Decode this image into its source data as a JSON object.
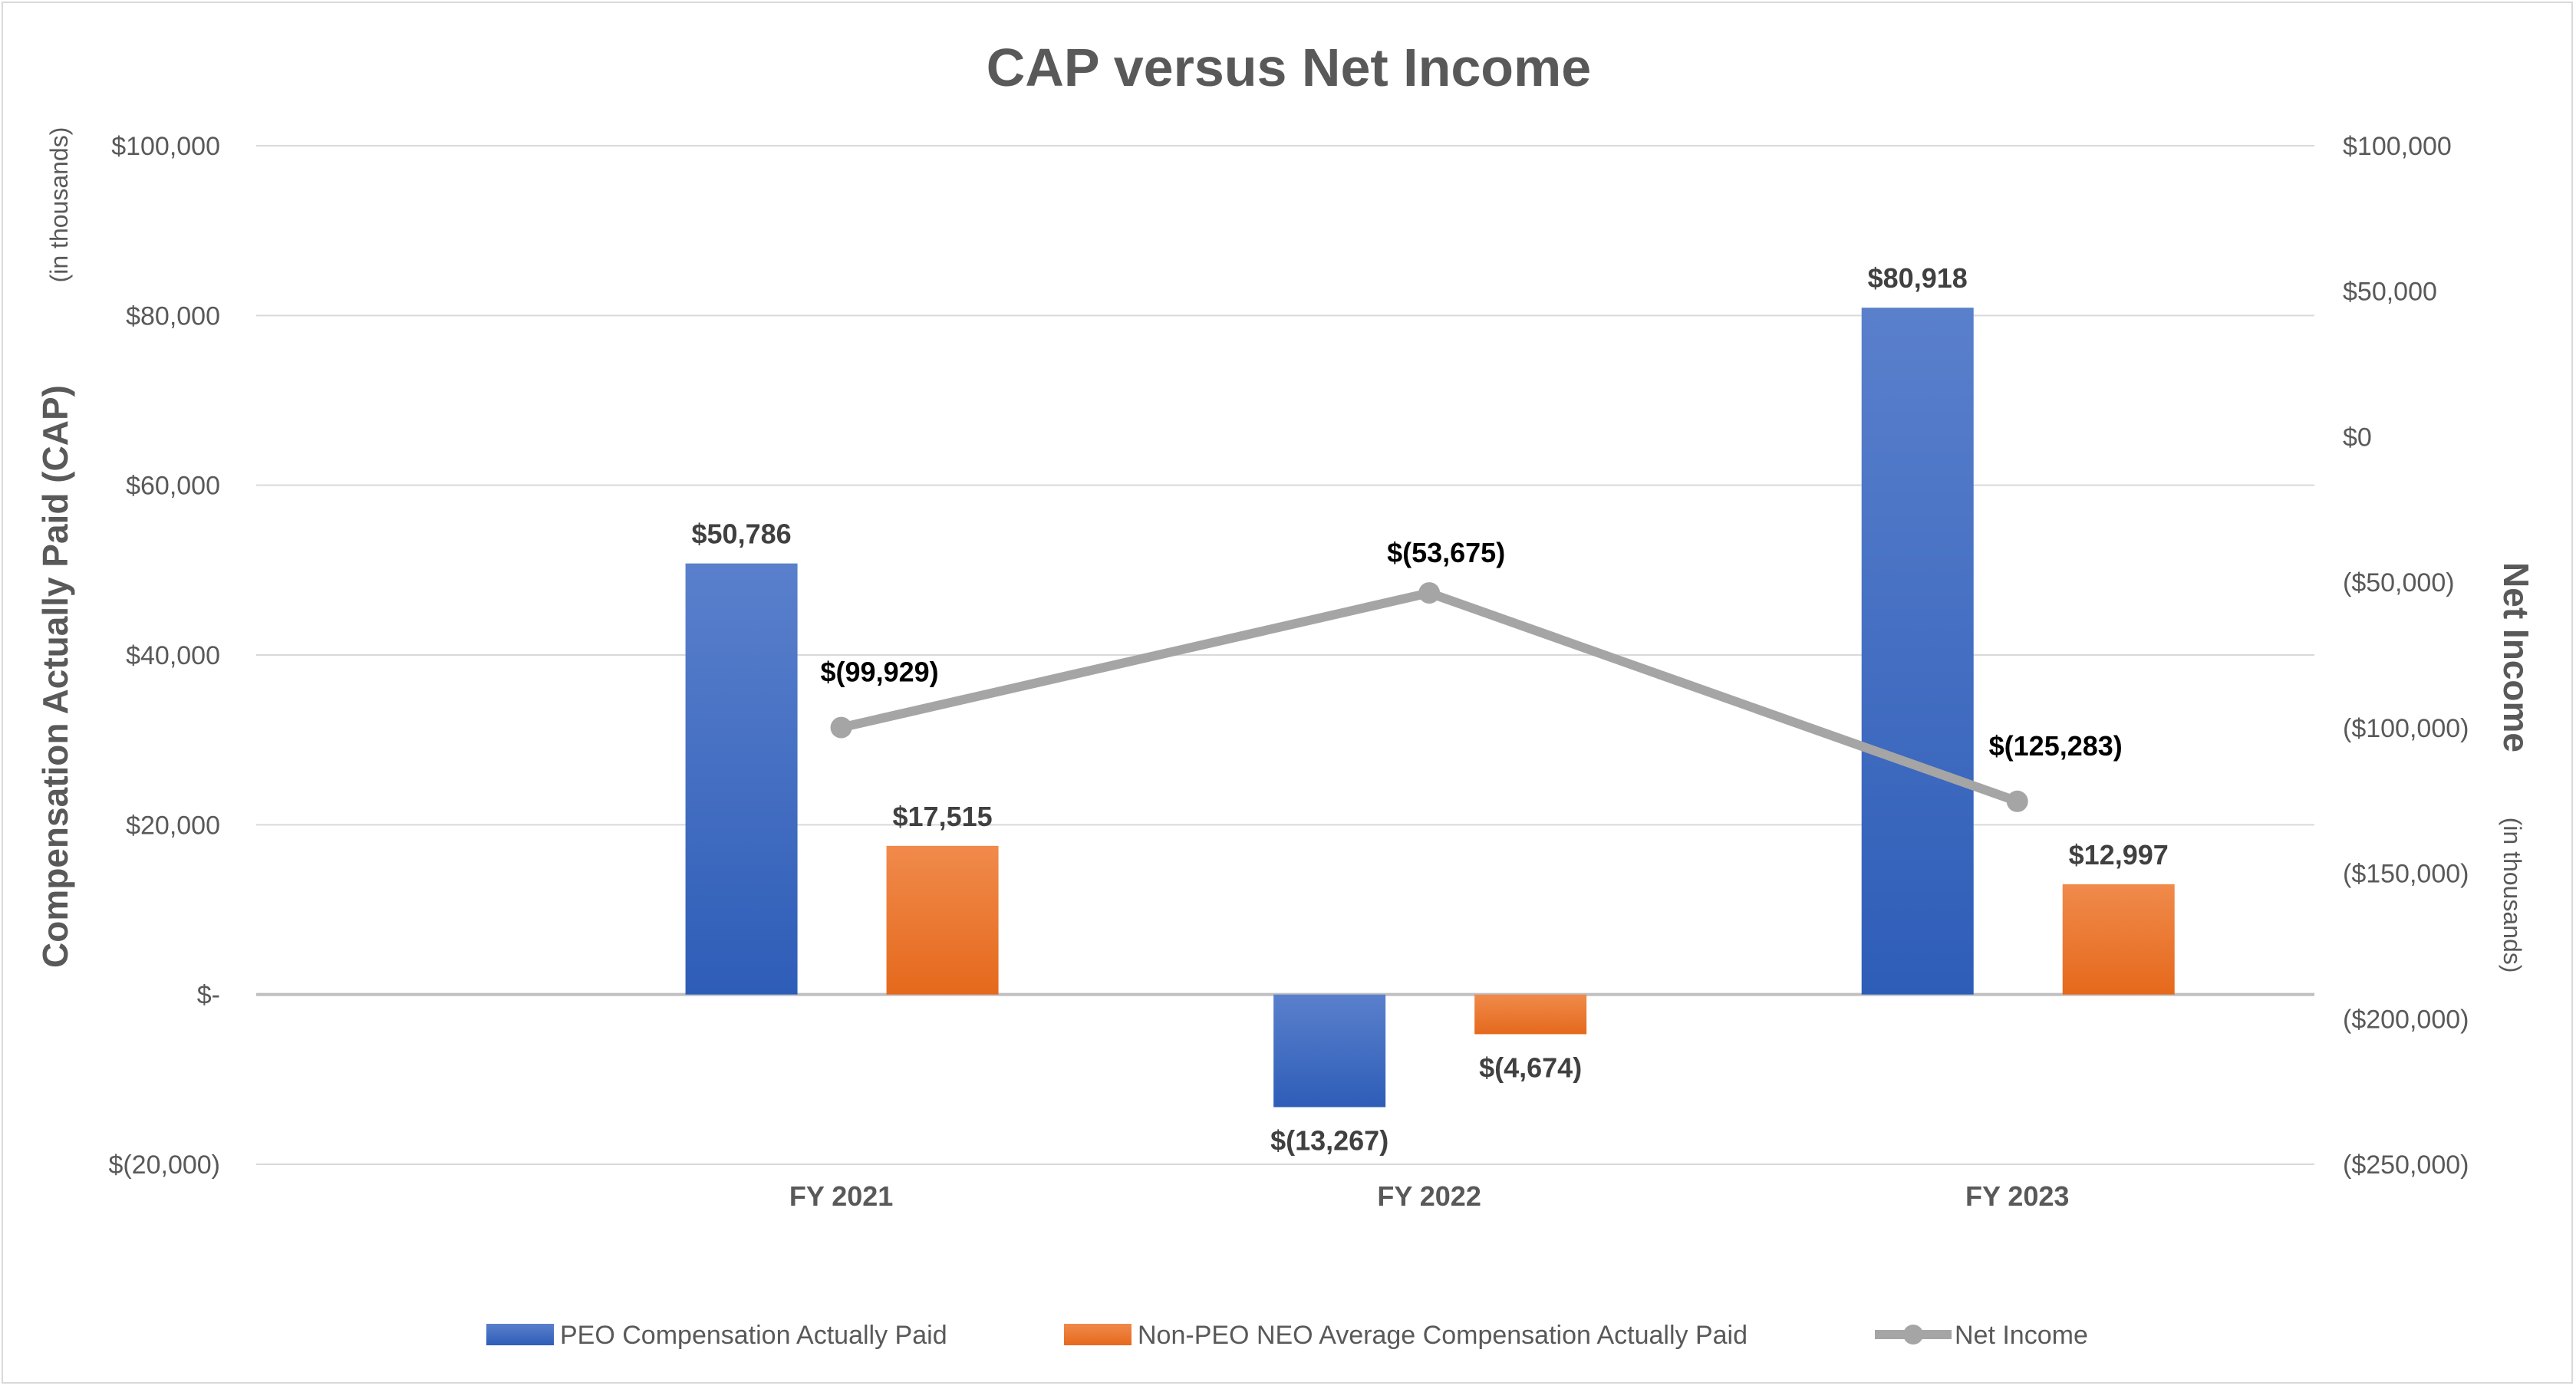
{
  "chart_data": {
    "type": "bar",
    "title": "CAP versus Net Income",
    "categories": [
      "FY 2021",
      "FY 2022",
      "FY 2023"
    ],
    "ylabel_left": "Compensation Actually Paid (CAP)",
    "ylabel_left_unit": "(in thousands)",
    "ylabel_right": "Net Income",
    "ylabel_right_unit": "(in thousands)",
    "ylim_left": [
      -20000,
      100000
    ],
    "yticks_left": [
      "$100,000",
      "$80,000",
      "$60,000",
      "$40,000",
      "$20,000",
      "$-",
      "$(20,000)"
    ],
    "ylim_right": [
      -250000,
      100000
    ],
    "yticks_right": [
      "$100,000",
      "$50,000",
      "$0",
      "($50,000)",
      "($100,000)",
      "($150,000)",
      "($200,000)",
      "($250,000)"
    ],
    "grid": true,
    "legend_position": "bottom",
    "series": [
      {
        "name": "PEO Compensation Actually Paid",
        "type": "bar",
        "axis": "left",
        "color": "#4472c4",
        "values": [
          50786,
          -13267,
          80918
        ],
        "labels": [
          "$50,786",
          "$(13,267)",
          "$80,918"
        ]
      },
      {
        "name": "Non-PEO NEO Average Compensation Actually Paid",
        "type": "bar",
        "axis": "left",
        "color": "#ed7d31",
        "values": [
          17515,
          -4674,
          12997
        ],
        "labels": [
          "$17,515",
          "$(4,674)",
          "$12,997"
        ]
      },
      {
        "name": "Net Income",
        "type": "line",
        "axis": "right",
        "color": "#a5a5a5",
        "values": [
          -99929,
          -53675,
          -125283
        ],
        "labels": [
          "$(99,929)",
          "$(53,675)",
          "$(125,283)"
        ]
      }
    ]
  }
}
